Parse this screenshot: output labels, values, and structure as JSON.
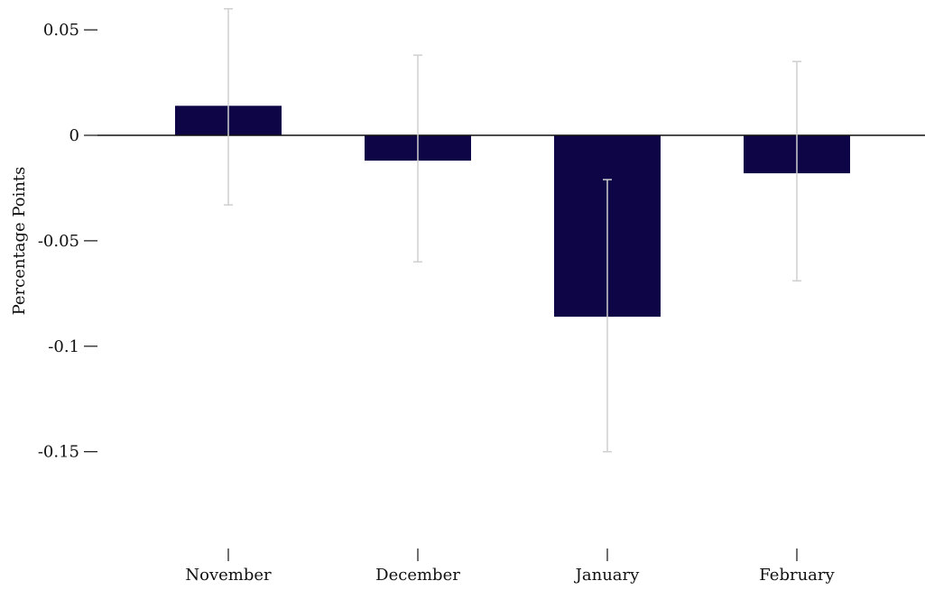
{
  "chart_data": {
    "type": "bar",
    "title": "",
    "xlabel": "",
    "ylabel": "Percentage Points",
    "categories": [
      "November",
      "December",
      "January",
      "February"
    ],
    "values": [
      0.014,
      -0.012,
      -0.086,
      -0.018
    ],
    "error_bars": {
      "lower": [
        -0.033,
        -0.06,
        -0.15,
        -0.069
      ],
      "upper": [
        0.06,
        0.038,
        -0.021,
        0.035
      ]
    },
    "ylim": [
      -0.18,
      0.06
    ],
    "y_ticks": [
      0.05,
      0,
      -0.05,
      -0.1,
      -0.15
    ],
    "y_tick_labels": [
      "0.05",
      "0",
      "-0.05",
      "-0.1",
      "-0.15"
    ],
    "grid": false,
    "legend": "none",
    "colors": {
      "bar": "#0d0546",
      "error_bar": "#cfcfcf",
      "axis": "#111111"
    }
  }
}
